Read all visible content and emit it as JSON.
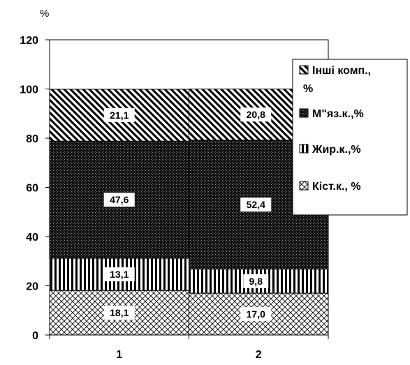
{
  "chart_data": {
    "type": "bar",
    "stacked": true,
    "y_unit": "%",
    "categories": [
      "1",
      "2"
    ],
    "ylim": [
      0,
      120
    ],
    "yticks": [
      "0",
      "20",
      "40",
      "60",
      "80",
      "100",
      "120"
    ],
    "grid": false,
    "legend_position": "right",
    "series": [
      {
        "name": "Кіст.к., %",
        "values": [
          18.1,
          17.0
        ],
        "labels": [
          "18,1",
          "17,0"
        ],
        "pattern": "crosshatch"
      },
      {
        "name": "Жир.к.,%",
        "values": [
          13.1,
          9.8
        ],
        "labels": [
          "13,1",
          "9,8"
        ],
        "pattern": "vertical"
      },
      {
        "name": "М\"яз.к.,%",
        "values": [
          47.6,
          52.4
        ],
        "labels": [
          "47,6",
          "52,4"
        ],
        "pattern": "dots"
      },
      {
        "name": "Інші комп., %",
        "values": [
          21.1,
          20.8
        ],
        "labels": [
          "21,1",
          "20,8"
        ],
        "pattern": "diagonal"
      }
    ],
    "legend_order": [
      3,
      2,
      1,
      0
    ]
  }
}
